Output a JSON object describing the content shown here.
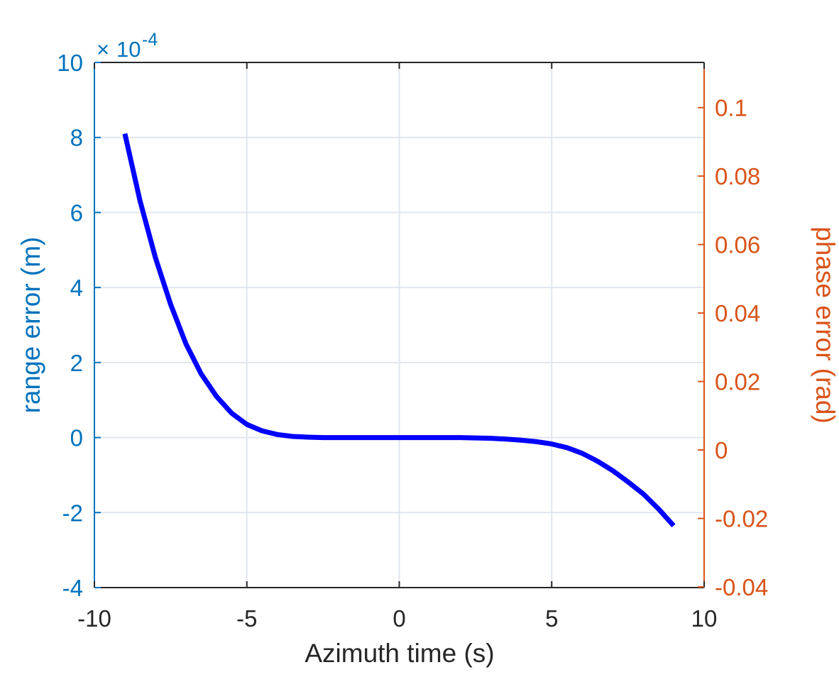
{
  "chart_data": {
    "type": "line",
    "xlabel": "Azimuth time (s)",
    "ylabel_left": "range error (m)",
    "ylabel_right": "phase error (rad)",
    "xlim": [
      -10,
      10
    ],
    "ylim_left": [
      -4,
      10
    ],
    "ylim_right": [
      -0.0402,
      0.1132
    ],
    "left_exponent_base": "10",
    "left_exponent": "-4",
    "left_exponent_prefix": "×",
    "xticks": [
      -10,
      -5,
      0,
      5,
      10
    ],
    "xtick_labels": [
      "-10",
      "-5",
      "0",
      "5",
      "10"
    ],
    "yticks_left": [
      -4,
      -2,
      0,
      2,
      4,
      6,
      8,
      10
    ],
    "ytick_labels_left": [
      "-4",
      "-2",
      "0",
      "2",
      "4",
      "6",
      "8",
      "10"
    ],
    "yticks_right": [
      -0.04,
      -0.02,
      0,
      0.02,
      0.04,
      0.06,
      0.08,
      0.1
    ],
    "ytick_labels_right": [
      "-0.04",
      "-0.02",
      "0",
      "0.02",
      "0.04",
      "0.06",
      "0.08",
      "0.1"
    ],
    "grid": true,
    "colors": {
      "left_axis": "#0072BD",
      "right_axis": "#D95319",
      "line": "#0000FF",
      "grid": "#E1E6EE",
      "frame": "#262626"
    },
    "series": [
      {
        "axis": "left",
        "x": [
          -9,
          -8.5,
          -8,
          -7.5,
          -7,
          -6.5,
          -6,
          -5.5,
          -5,
          -4.5,
          -4,
          -3.5,
          -3,
          -2.5,
          -2,
          -1.5,
          -1,
          -0.5,
          0,
          0.5,
          1,
          1.5,
          2,
          2.5,
          3,
          3.5,
          4,
          4.5,
          5,
          5.5,
          6,
          6.5,
          7,
          7.5,
          8,
          8.5,
          9
        ],
        "y": [
          8.1,
          6.3,
          4.8,
          3.55,
          2.5,
          1.7,
          1.1,
          0.65,
          0.35,
          0.18,
          0.08,
          0.03,
          0.01,
          0.0,
          0.0,
          0.0,
          0.0,
          0.0,
          0.0,
          0.0,
          0.0,
          0.0,
          0.0,
          -0.01,
          -0.02,
          -0.04,
          -0.07,
          -0.11,
          -0.17,
          -0.27,
          -0.42,
          -0.63,
          -0.88,
          -1.18,
          -1.5,
          -1.9,
          -2.35
        ]
      }
    ]
  }
}
